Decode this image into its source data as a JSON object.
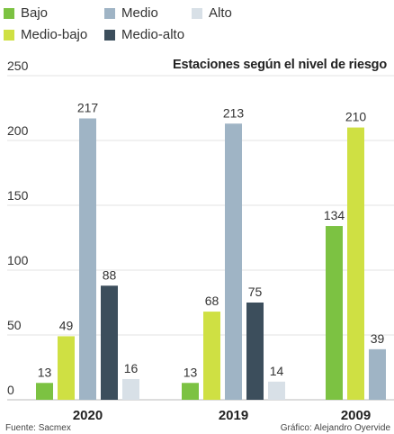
{
  "chart_data": {
    "type": "bar",
    "title": "Estaciones según el nivel de riesgo",
    "categories": [
      "2020",
      "2019",
      "2009"
    ],
    "series": [
      {
        "name": "Bajo",
        "color": "#7cc242",
        "values": [
          13,
          13,
          134
        ]
      },
      {
        "name": "Medio-bajo",
        "color": "#cfe043",
        "values": [
          49,
          68,
          210
        ]
      },
      {
        "name": "Medio",
        "color": "#9fb4c5",
        "values": [
          217,
          213,
          39
        ]
      },
      {
        "name": "Medio-alto",
        "color": "#3c4e5c",
        "values": [
          88,
          75,
          null
        ]
      },
      {
        "name": "Alto",
        "color": "#d8e0e7",
        "values": [
          16,
          14,
          null
        ]
      }
    ],
    "yticks": [
      0,
      50,
      100,
      150,
      200,
      250
    ],
    "ylim": [
      0,
      250
    ],
    "grid": true,
    "legend_position": "top-left",
    "xlabel": "",
    "ylabel": ""
  },
  "legend": [
    {
      "label": "Bajo",
      "color": "#7cc242"
    },
    {
      "label": "Medio",
      "color": "#9fb4c5"
    },
    {
      "label": "Alto",
      "color": "#d8e0e7"
    },
    {
      "label": "Medio-bajo",
      "color": "#cfe043"
    },
    {
      "label": "Medio-alto",
      "color": "#3c4e5c"
    }
  ],
  "footer": {
    "source": "Fuente: Sacmex",
    "credit": "Gráfico: Alejandro Oyervide"
  }
}
